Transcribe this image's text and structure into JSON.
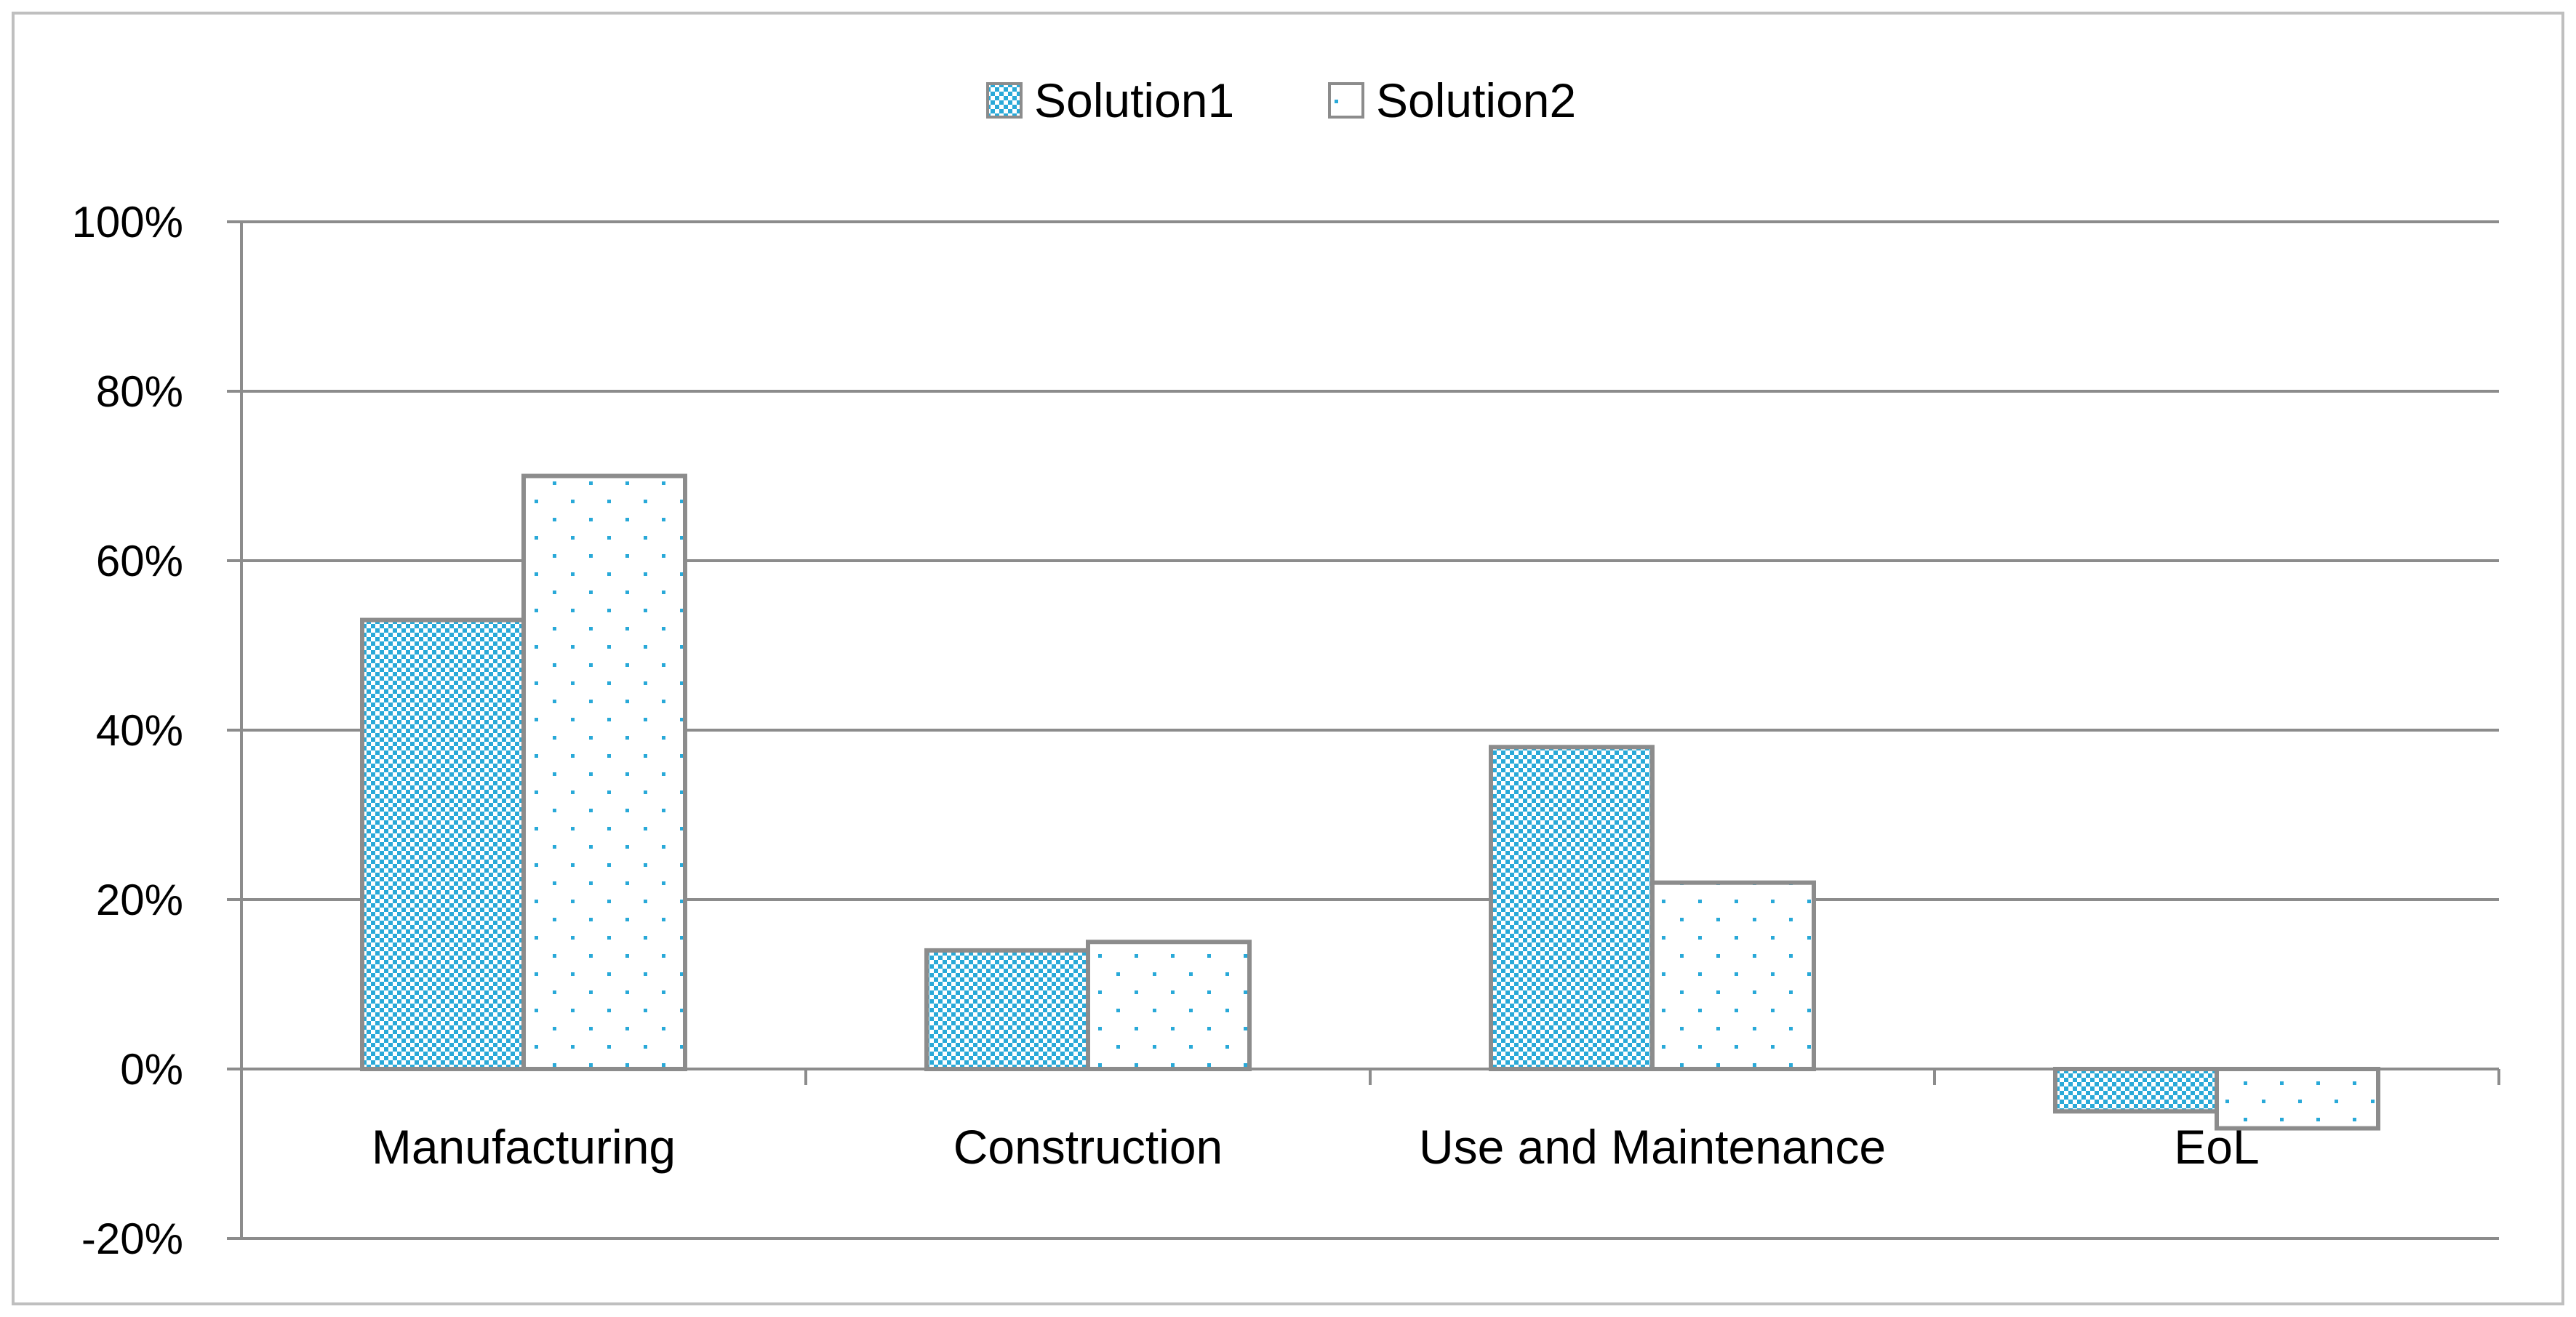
{
  "chart_data": {
    "type": "bar",
    "title": "",
    "xlabel": "",
    "ylabel": "",
    "categories": [
      "Manufacturing",
      "Construction",
      "Use and Maintenance",
      "EoL"
    ],
    "series": [
      {
        "name": "Solution1",
        "values": [
          53,
          14,
          38,
          -5
        ],
        "pattern": "checker",
        "color": "#29a9d8"
      },
      {
        "name": "Solution2",
        "values": [
          70,
          15,
          22,
          -7
        ],
        "pattern": "dots",
        "color": "#29a9d8"
      }
    ],
    "ylim": [
      -20,
      100
    ],
    "yticks": [
      -20,
      0,
      20,
      40,
      60,
      80,
      100
    ],
    "ytick_labels": [
      "-20%",
      "0%",
      "20%",
      "40%",
      "60%",
      "80%",
      "100%"
    ],
    "grid": true,
    "legend_position": "top-center",
    "colors": {
      "bar_outline": "#8c8c8c",
      "grid": "#8c8c8c",
      "frame": "#bfbfbf"
    }
  }
}
